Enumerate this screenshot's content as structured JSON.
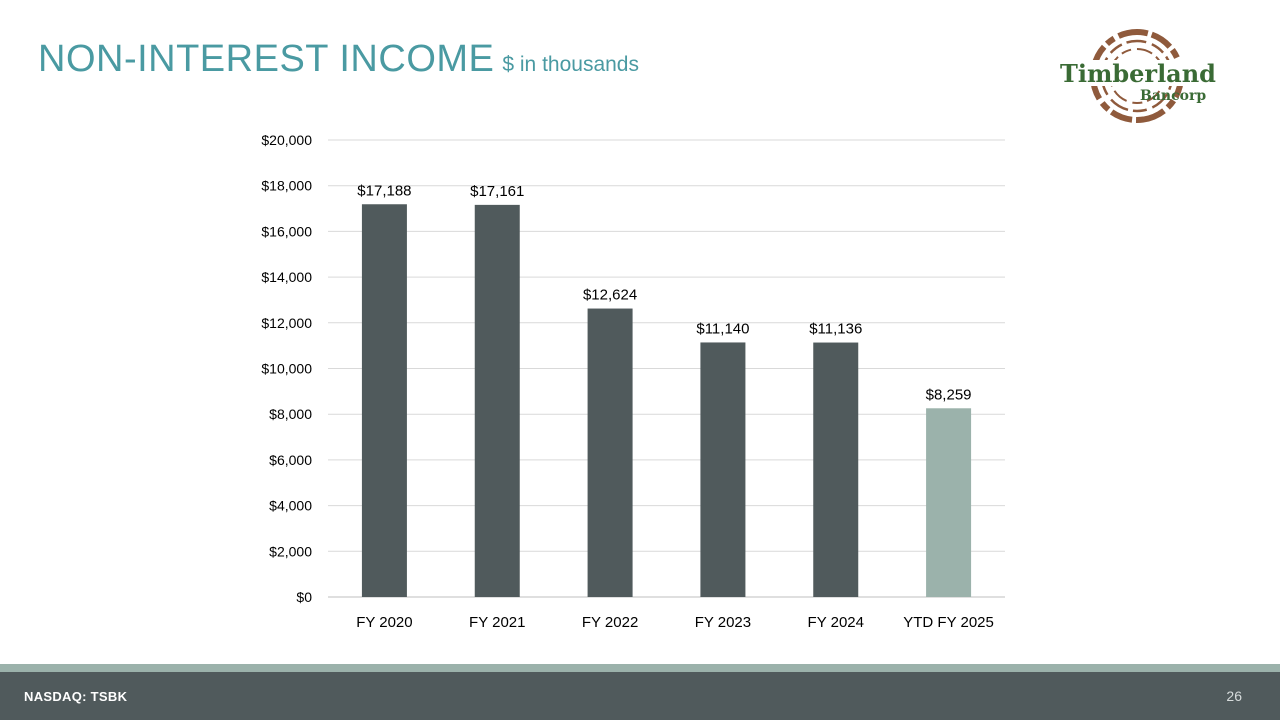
{
  "slide": {
    "title": "NON-INTEREST INCOME",
    "subtitle": "$ in thousands",
    "page_number": "26"
  },
  "logo": {
    "line1": "Timberland",
    "line2": "Bancorp"
  },
  "footer": {
    "ticker": "NASDAQ: TSBK"
  },
  "colors": {
    "title": "#4a9aa2",
    "bar": "#505a5c",
    "bar_highlight": "#9bb2ab",
    "gridline": "#d9d9d9",
    "footer_bg": "#505a5c",
    "footer_stripe": "#9bb2ab",
    "logo_green": "#3a6b35",
    "logo_brown": "#8f5a3c"
  },
  "chart_data": {
    "type": "bar",
    "title": "NON-INTEREST INCOME",
    "xlabel": "",
    "ylabel": "$ in thousands",
    "categories": [
      "FY 2020",
      "FY 2021",
      "FY 2022",
      "FY 2023",
      "FY 2024",
      "YTD FY 2025"
    ],
    "values": [
      17188,
      17161,
      12624,
      11140,
      11136,
      8259
    ],
    "data_labels": [
      "$17,188",
      "$17,161",
      "$12,624",
      "$11,140",
      "$11,136",
      "$8,259"
    ],
    "highlight_index": 5,
    "ylim": [
      0,
      20000
    ],
    "y_ticks": [
      0,
      2000,
      4000,
      6000,
      8000,
      10000,
      12000,
      14000,
      16000,
      18000,
      20000
    ],
    "y_tick_labels": [
      "$0",
      "$2,000",
      "$4,000",
      "$6,000",
      "$8,000",
      "$10,000",
      "$12,000",
      "$14,000",
      "$16,000",
      "$18,000",
      "$20,000"
    ],
    "grid": true,
    "legend": "none"
  }
}
